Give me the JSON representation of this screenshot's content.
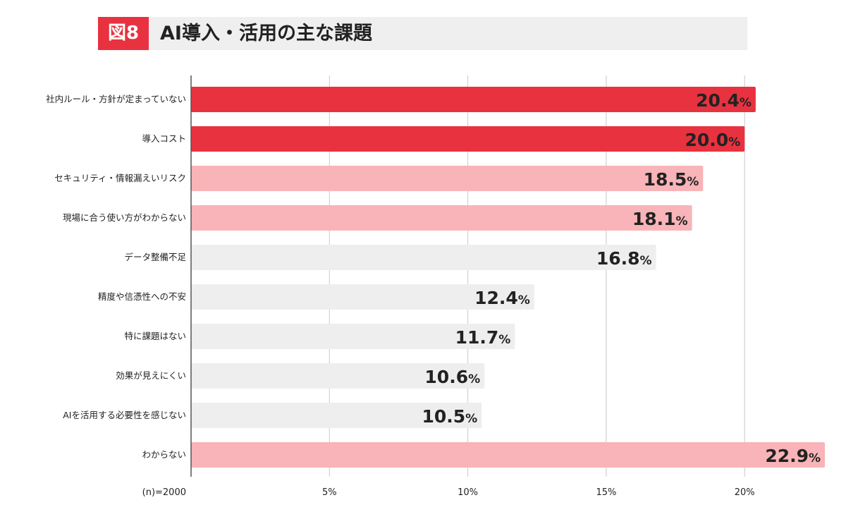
{
  "title": {
    "badge": "図8",
    "text": "AI導入・活用の主な課題"
  },
  "chart_data": {
    "type": "bar",
    "orientation": "horizontal",
    "title": "AI導入・活用の主な課題",
    "categories": [
      "社内ルール・方針が定まっていない",
      "導入コスト",
      "セキュリティ・情報漏えいリスク",
      "現場に合う使い方がわからない",
      "データ整備不足",
      "精度や信憑性への不安",
      "特に課題はない",
      "効果が見えにくい",
      "AIを活用する必要性を感じない",
      "わからない"
    ],
    "values": [
      20.4,
      20.0,
      18.5,
      18.1,
      16.8,
      12.4,
      11.7,
      10.6,
      10.5,
      22.9
    ],
    "bar_colors": [
      "#e8323f",
      "#e8323f",
      "#f8b4b8",
      "#f8b4b8",
      "#eeeeee",
      "#eeeeee",
      "#eeeeee",
      "#eeeeee",
      "#eeeeee",
      "#f8b4b8"
    ],
    "value_label_colors": [
      "#ffffff",
      "#ffffff",
      "#222222",
      "#222222",
      "#222222",
      "#222222",
      "#222222",
      "#222222",
      "#222222",
      "#222222"
    ],
    "value_suffix": "%",
    "xlim": [
      0,
      23
    ],
    "xticks": [
      5,
      10,
      15,
      20
    ],
    "xtick_labels": [
      "5%",
      "10%",
      "15%",
      "20%"
    ],
    "grid": true,
    "note": "(n)=2000"
  }
}
